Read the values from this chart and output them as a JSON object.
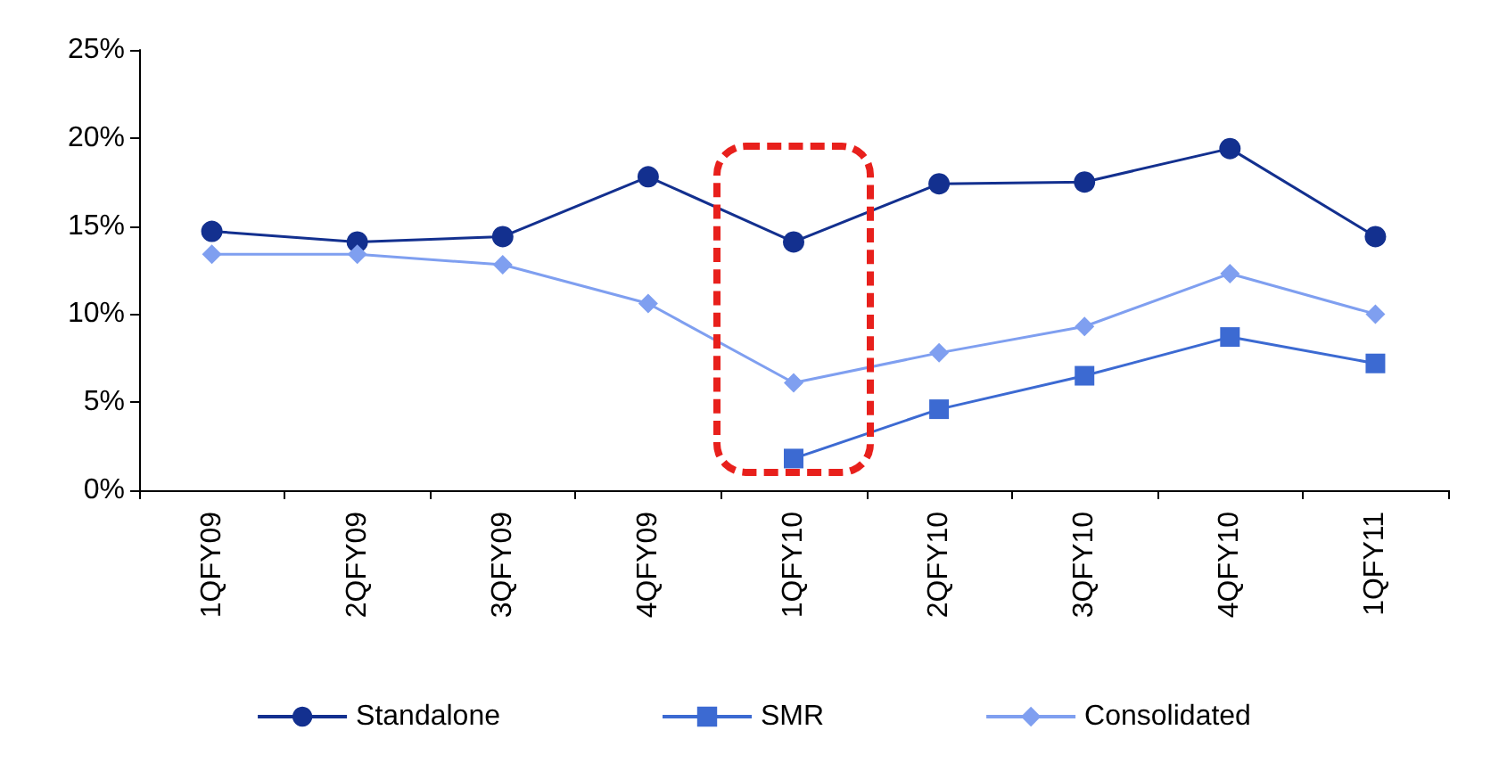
{
  "chart_data": {
    "type": "line",
    "categories": [
      "1QFY09",
      "2QFY09",
      "3QFY09",
      "4QFY09",
      "1QFY10",
      "2QFY10",
      "3QFY10",
      "4QFY10",
      "1QFY11"
    ],
    "series": [
      {
        "name": "Standalone",
        "color": "#13308f",
        "marker": "circle",
        "values": [
          14.7,
          14.1,
          14.4,
          17.8,
          14.1,
          17.4,
          17.5,
          19.4,
          14.4
        ]
      },
      {
        "name": "SMR",
        "color": "#3c6ad2",
        "marker": "square",
        "values": [
          null,
          null,
          null,
          null,
          1.8,
          4.6,
          6.5,
          8.7,
          7.2
        ]
      },
      {
        "name": "Consolidated",
        "color": "#7f9ff0",
        "marker": "diamond",
        "values": [
          13.4,
          13.4,
          12.8,
          10.6,
          6.1,
          7.8,
          9.3,
          12.3,
          10.0
        ]
      }
    ],
    "ylim": [
      0,
      25
    ],
    "yticks": [
      {
        "value": 0,
        "label": "0%"
      },
      {
        "value": 5,
        "label": "5%"
      },
      {
        "value": 10,
        "label": "10%"
      },
      {
        "value": 15,
        "label": "15%"
      },
      {
        "value": 20,
        "label": "20%"
      },
      {
        "value": 25,
        "label": "25%"
      }
    ],
    "grid": false,
    "legend": "bottom"
  }
}
